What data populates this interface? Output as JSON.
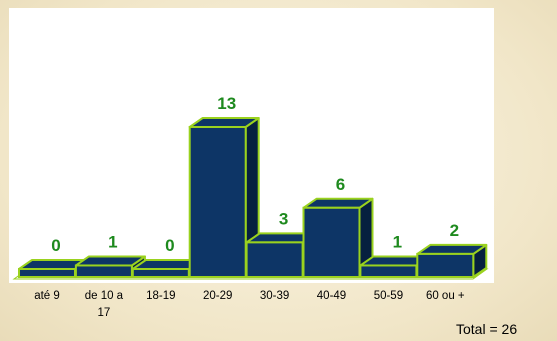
{
  "chart_data": {
    "type": "bar",
    "style": "3d",
    "categories": [
      "até 9",
      "de 10 a 17",
      "18-19",
      "20-29",
      "30-39",
      "40-49",
      "50-59",
      "60 ou +"
    ],
    "category_lines": [
      [
        "até 9"
      ],
      [
        "de 10 a",
        "17"
      ],
      [
        "18-19"
      ],
      [
        "20-29"
      ],
      [
        "30-39"
      ],
      [
        "40-49"
      ],
      [
        "50-59"
      ],
      [
        "60 ou +"
      ]
    ],
    "values": [
      0,
      1,
      0,
      13,
      3,
      6,
      1,
      2
    ],
    "data_labels": [
      "0",
      "1",
      "0",
      "13",
      "3",
      "6",
      "1",
      "2"
    ],
    "ylim": [
      0,
      13
    ],
    "grid": false,
    "legend": "none",
    "colors": {
      "bar_fill": "#0d3566",
      "bar_side": "#06203f",
      "bar_edge": "#9ad21e",
      "label": "#1e8a1e",
      "plot_bg": "#ffffff"
    }
  },
  "footer": {
    "total": "Total = 26"
  }
}
